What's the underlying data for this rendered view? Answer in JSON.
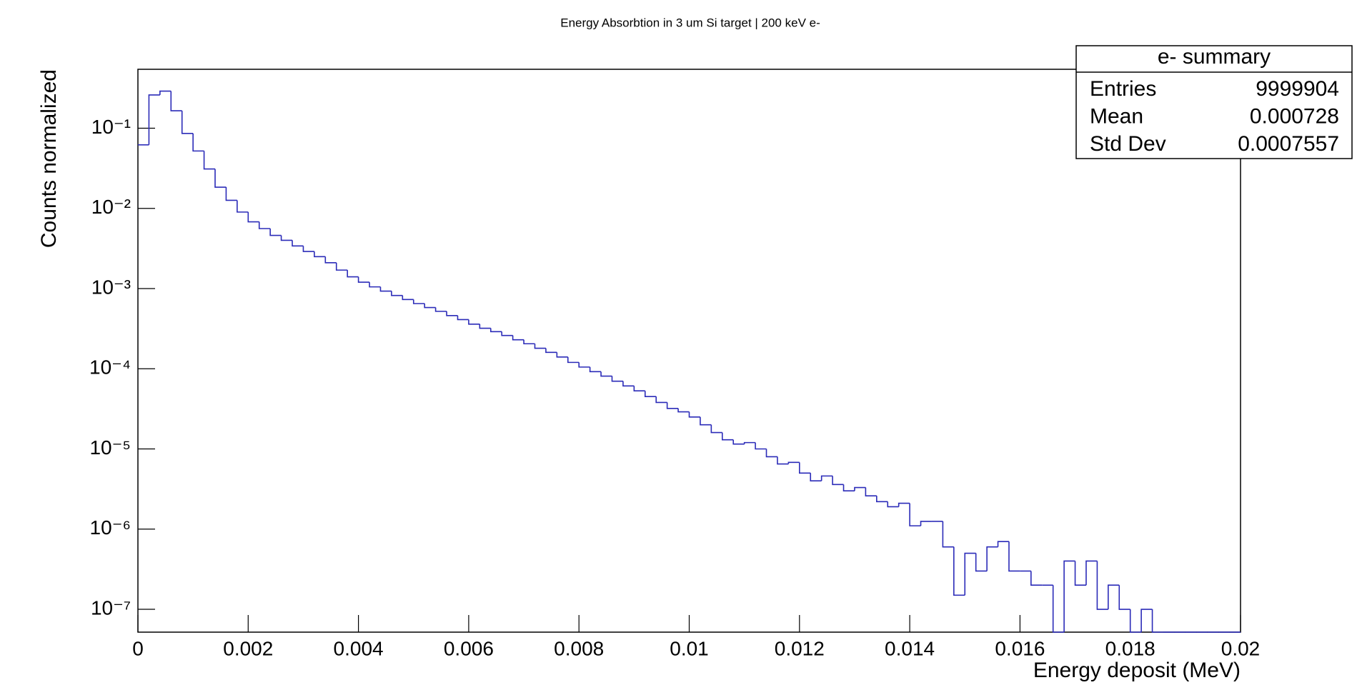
{
  "chart_data": {
    "type": "histogram",
    "title": "Energy Absorbtion in 3 um Si target | 200 keV e-",
    "x_label": "Energy deposit (MeV)",
    "y_label": "Counts normalized",
    "color": "#2b2bb8",
    "log_y": true,
    "bins": [
      0,
      0.0002,
      0.0004,
      0.0006,
      0.0008,
      0.001,
      0.0012,
      0.0014,
      0.0016,
      0.0018,
      0.002,
      0.0022,
      0.0024,
      0.0026,
      0.0028,
      0.003,
      0.0032,
      0.0034,
      0.0036,
      0.0038,
      0.004,
      0.0042,
      0.0044,
      0.0046,
      0.0048,
      0.005,
      0.0052,
      0.0054,
      0.0056,
      0.0058,
      0.006,
      0.0062,
      0.0064,
      0.0066,
      0.0068,
      0.007,
      0.0072,
      0.0074,
      0.0076,
      0.0078,
      0.008,
      0.0082,
      0.0084,
      0.0086,
      0.0088,
      0.009,
      0.0092,
      0.0094,
      0.0096,
      0.0098,
      0.01,
      0.0102,
      0.0104,
      0.0106,
      0.0108,
      0.011,
      0.0112,
      0.0114,
      0.0116,
      0.0118,
      0.012,
      0.0122,
      0.0124,
      0.0126,
      0.0128,
      0.013,
      0.0132,
      0.0134,
      0.0136,
      0.0138,
      0.014,
      0.0142,
      0.0144,
      0.0146,
      0.0148,
      0.015,
      0.0152,
      0.0154,
      0.0156,
      0.0158,
      0.016,
      0.0162,
      0.0164,
      0.0166,
      0.0168,
      0.017,
      0.0172,
      0.0174,
      0.0176,
      0.0178,
      0.018,
      0.0182,
      0.0184,
      0.0186,
      0.0188,
      0.019,
      0.0192,
      0.0194,
      0.0196,
      0.0198,
      0.02
    ],
    "counts": [
      0.062,
      0.26,
      0.29,
      0.165,
      0.086,
      0.052,
      0.031,
      0.0184,
      0.0126,
      0.009,
      0.0068,
      0.0056,
      0.0046,
      0.004,
      0.0034,
      0.0029,
      0.0025,
      0.0021,
      0.0017,
      0.0014,
      0.0012,
      0.00105,
      0.00093,
      0.00082,
      0.00073,
      0.00065,
      0.00058,
      0.00052,
      0.00046,
      0.00041,
      0.00036,
      0.00032,
      0.00029,
      0.00026,
      0.00023,
      0.000205,
      0.00018,
      0.00016,
      0.00014,
      0.00012,
      0.000105,
      9.2e-05,
      8.1e-05,
      7e-05,
      6.1e-05,
      5.3e-05,
      4.5e-05,
      3.8e-05,
      3.2e-05,
      2.9e-05,
      2.5e-05,
      2e-05,
      1.6e-05,
      1.3e-05,
      1.15e-05,
      1.2e-05,
      1e-05,
      8e-06,
      6.5e-06,
      6.8e-06,
      5e-06,
      4e-06,
      4.6e-06,
      3.6e-06,
      3e-06,
      3.3e-06,
      2.6e-06,
      2.2e-06,
      1.9e-06,
      2.1e-06,
      1.1e-06,
      1.25e-06,
      1.25e-06,
      6e-07,
      1.5e-07,
      5e-07,
      3e-07,
      6e-07,
      7e-07,
      3e-07,
      3e-07,
      2e-07,
      2e-07,
      0,
      4e-07,
      2e-07,
      4e-07,
      1e-07,
      2e-07,
      1e-07,
      0,
      1e-07,
      0,
      0,
      0,
      0,
      0,
      0,
      0,
      0
    ],
    "xlim": [
      0,
      0.02
    ],
    "xticks": [
      0,
      0.002,
      0.004,
      0.006,
      0.008,
      0.01,
      0.012,
      0.014,
      0.016,
      0.018,
      0.02
    ],
    "ylim": [
      5.19e-08,
      0.543
    ],
    "yticks": [
      {
        "value": 0.1,
        "label": "10⁻¹"
      },
      {
        "value": 0.01,
        "label": "10⁻²"
      },
      {
        "value": 0.001,
        "label": "10⁻³"
      },
      {
        "value": 0.0001,
        "label": "10⁻⁴"
      },
      {
        "value": 1e-05,
        "label": "10⁻⁵"
      },
      {
        "value": 1e-06,
        "label": "10⁻⁶"
      },
      {
        "value": 1e-07,
        "label": "10⁻⁷"
      }
    ],
    "stats": {
      "title": "e- summary",
      "rows": [
        [
          "Entries",
          9999904
        ],
        [
          "Mean",
          0.000728
        ],
        [
          "Std Dev",
          0.0007557
        ]
      ]
    }
  }
}
